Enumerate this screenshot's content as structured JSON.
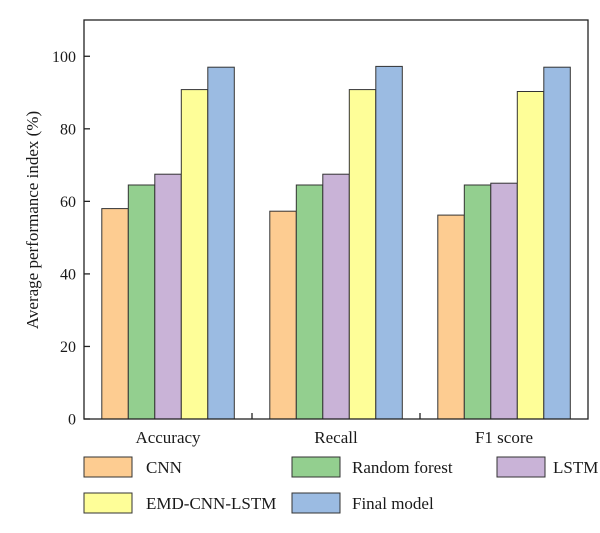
{
  "chart_data": {
    "type": "bar",
    "categories": [
      "Accuracy",
      "Recall",
      "F1 score"
    ],
    "series": [
      {
        "name": "CNN",
        "color": "#fdcc91",
        "values": [
          58.0,
          57.3,
          56.2
        ]
      },
      {
        "name": "Random forest",
        "color": "#93cf8f",
        "values": [
          64.5,
          64.5,
          64.5
        ]
      },
      {
        "name": "LSTM",
        "color": "#c9b3d7",
        "values": [
          67.5,
          67.5,
          65.0
        ]
      },
      {
        "name": "EMD-CNN-LSTM",
        "color": "#fefe98",
        "values": [
          90.8,
          90.8,
          90.3
        ]
      },
      {
        "name": "Final model",
        "color": "#9bbbe2",
        "values": [
          97.0,
          97.2,
          97.0
        ]
      }
    ],
    "ylabel": "Average performance index (%)",
    "xlabel": "",
    "ylim": [
      0,
      110
    ],
    "yticks": [
      0,
      20,
      40,
      60,
      80,
      100
    ],
    "grid": false,
    "legend_position": "bottom"
  }
}
